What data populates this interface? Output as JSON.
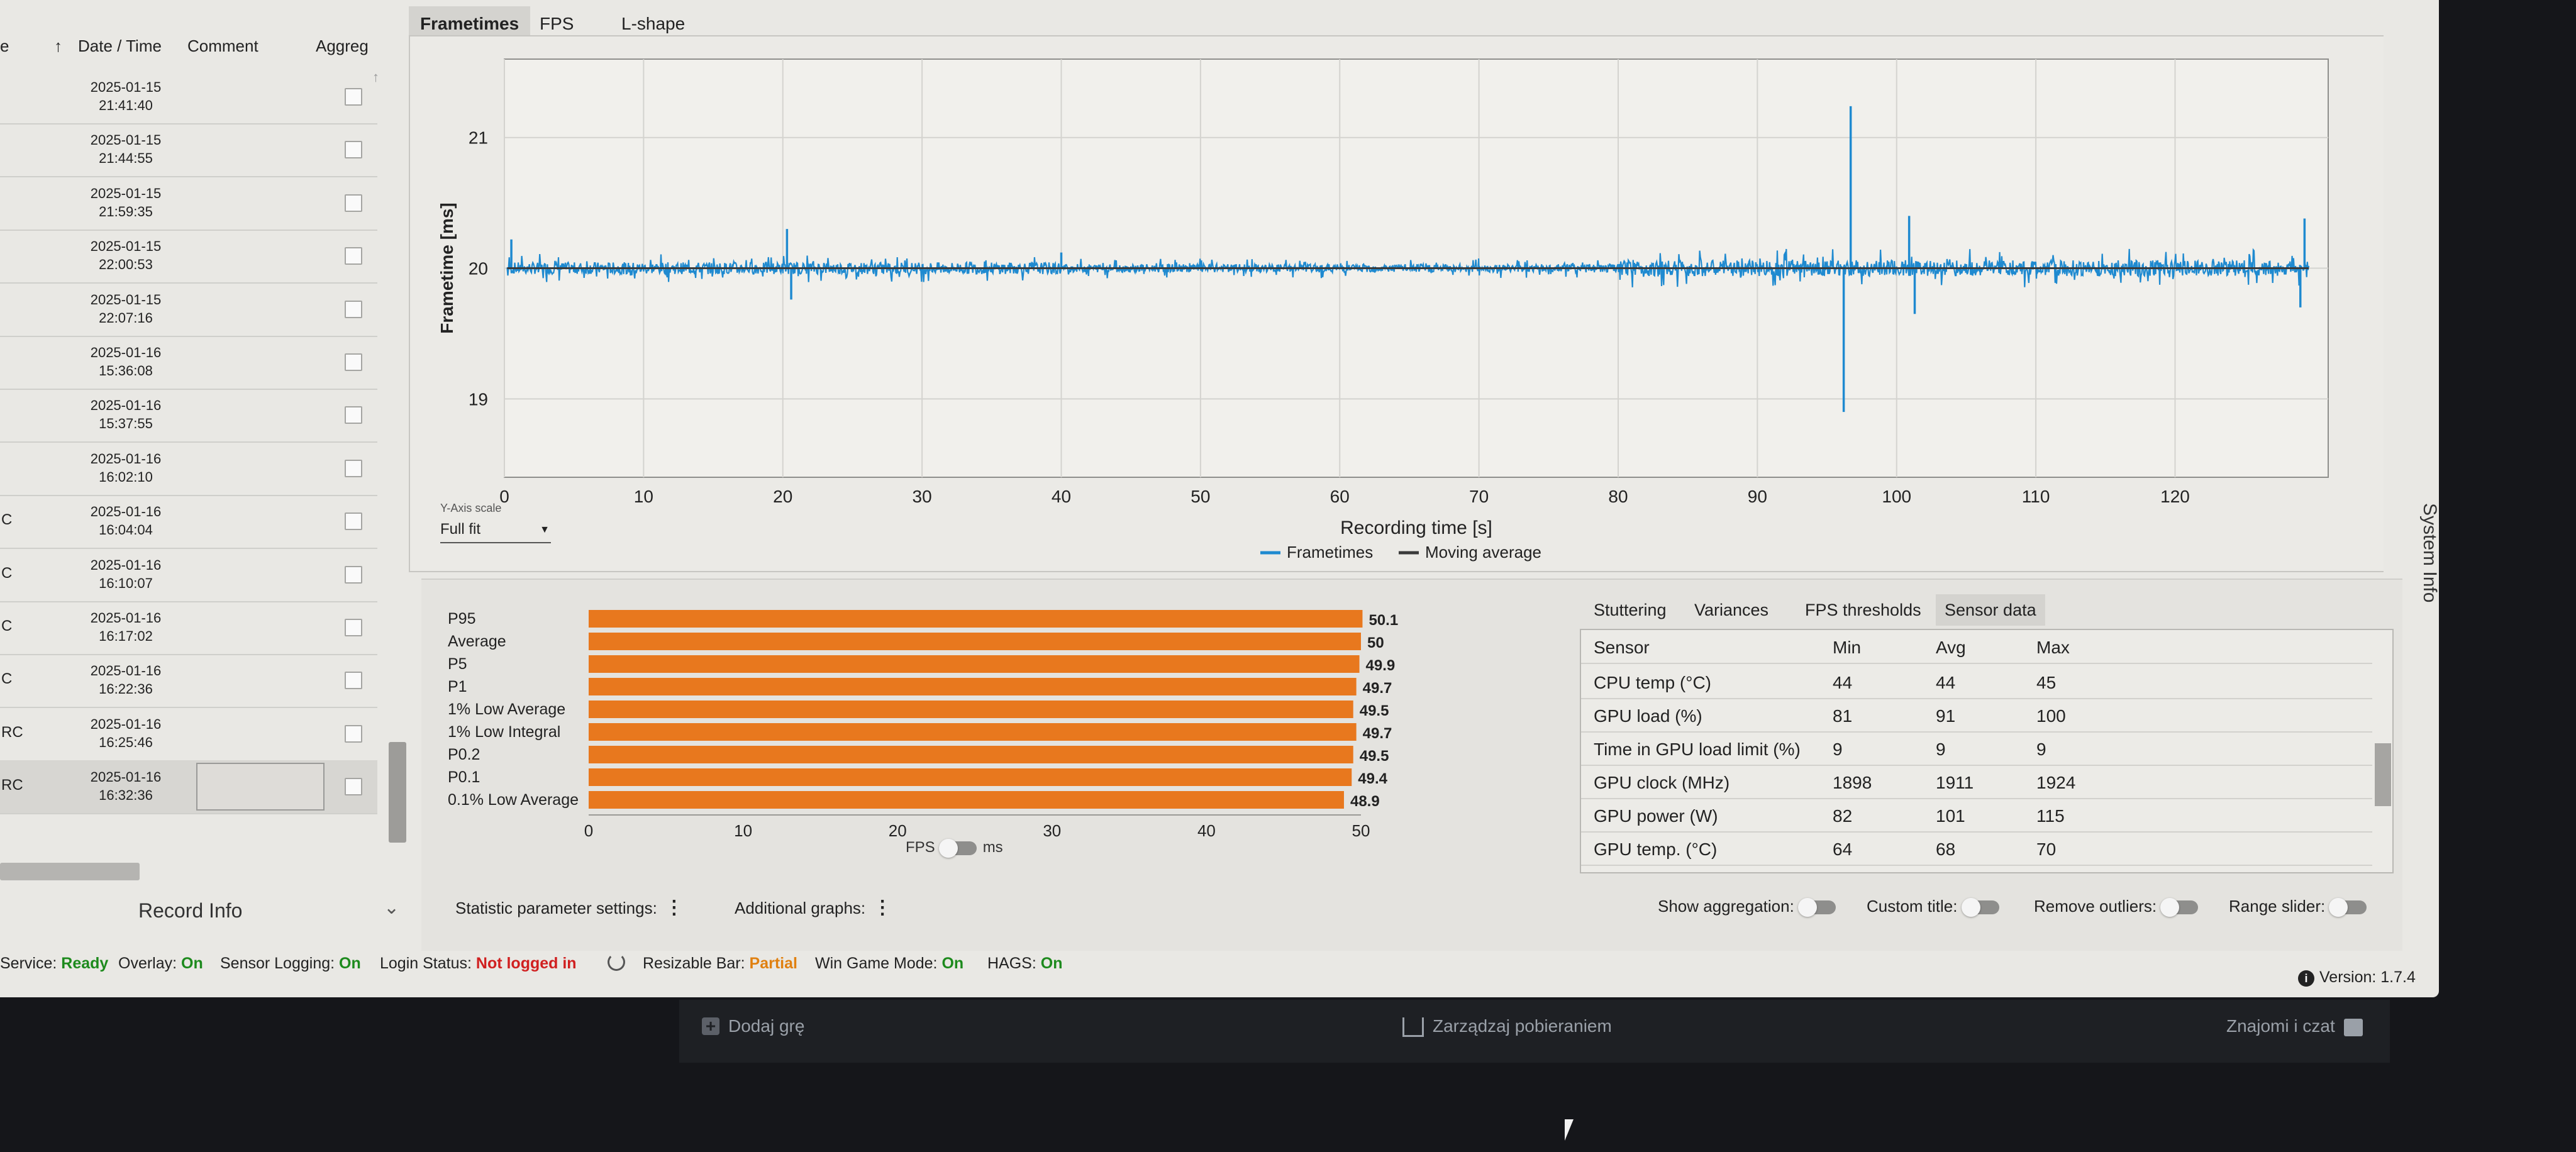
{
  "runs": {
    "headers": {
      "col_e": "e",
      "date_time": "Date / Time",
      "comment": "Comment",
      "aggreg": "Aggreg"
    },
    "rows": [
      {
        "prefix": "",
        "date": "2025-01-15",
        "time": "21:41:40"
      },
      {
        "prefix": "",
        "date": "2025-01-15",
        "time": "21:44:55"
      },
      {
        "prefix": "",
        "date": "2025-01-15",
        "time": "21:59:35"
      },
      {
        "prefix": "",
        "date": "2025-01-15",
        "time": "22:00:53"
      },
      {
        "prefix": "",
        "date": "2025-01-15",
        "time": "22:07:16"
      },
      {
        "prefix": "",
        "date": "2025-01-16",
        "time": "15:36:08"
      },
      {
        "prefix": "",
        "date": "2025-01-16",
        "time": "15:37:55"
      },
      {
        "prefix": "",
        "date": "2025-01-16",
        "time": "16:02:10"
      },
      {
        "prefix": "C",
        "date": "2025-01-16",
        "time": "16:04:04"
      },
      {
        "prefix": "C",
        "date": "2025-01-16",
        "time": "16:10:07"
      },
      {
        "prefix": "C",
        "date": "2025-01-16",
        "time": "16:17:02"
      },
      {
        "prefix": "C",
        "date": "2025-01-16",
        "time": "16:22:36"
      },
      {
        "prefix": "RC",
        "date": "2025-01-16",
        "time": "16:25:46"
      },
      {
        "prefix": "RC",
        "date": "2025-01-16",
        "time": "16:32:36"
      }
    ],
    "record_info": "Record Info"
  },
  "chart_tabs": [
    "Frametimes",
    "FPS",
    "L-shape"
  ],
  "y_axis_scale": {
    "label": "Y-Axis scale",
    "value": "Full fit"
  },
  "system_info": "System Info",
  "chart_data": [
    {
      "type": "line",
      "xlabel": "Recording time [s]",
      "ylabel": "Frametime [ms]",
      "xlim": [
        0,
        131
      ],
      "ylim": [
        18.4,
        21.6
      ],
      "x_ticks": [
        0,
        10,
        20,
        30,
        40,
        50,
        60,
        70,
        80,
        90,
        100,
        110,
        120
      ],
      "y_ticks": [
        19,
        20,
        21
      ],
      "grid": true,
      "legend": "bottom-center",
      "series": [
        {
          "name": "Frametimes",
          "color": "#1f8ad0",
          "baseline": 20.0,
          "spikes": [
            {
              "x": 0.5,
              "y": 20.22
            },
            {
              "x": 20.3,
              "y": 20.3
            },
            {
              "x": 20.6,
              "y": 19.76
            },
            {
              "x": 40.0,
              "y": 20.12
            },
            {
              "x": 96.7,
              "y": 21.24
            },
            {
              "x": 96.2,
              "y": 18.9
            },
            {
              "x": 100.9,
              "y": 20.4
            },
            {
              "x": 101.3,
              "y": 19.65
            },
            {
              "x": 129.3,
              "y": 20.38
            },
            {
              "x": 129.0,
              "y": 19.7
            }
          ]
        },
        {
          "name": "Moving average",
          "color": "#3a3a3a",
          "values": [
            20.0,
            20.0
          ]
        }
      ]
    },
    {
      "type": "bar",
      "orientation": "horizontal",
      "categories": [
        "P95",
        "Average",
        "P5",
        "P1",
        "1% Low Average",
        "1% Low Integral",
        "P0.2",
        "P0.1",
        "0.1% Low Average"
      ],
      "values": [
        50.1,
        50,
        49.9,
        49.7,
        49.5,
        49.7,
        49.5,
        49.4,
        48.9
      ],
      "xlim": [
        0,
        50
      ],
      "x_ticks": [
        0,
        10,
        20,
        30,
        40,
        50
      ],
      "color": "#e8781e"
    }
  ],
  "unit_toggle": {
    "left": "FPS",
    "right": "ms"
  },
  "sensor_tabs": [
    "Stuttering",
    "Variances",
    "FPS thresholds",
    "Sensor data"
  ],
  "sensor_table": {
    "headers": [
      "Sensor",
      "Min",
      "Avg",
      "Max"
    ],
    "rows": [
      [
        "CPU temp (°C)",
        "44",
        "44",
        "45"
      ],
      [
        "GPU load (%)",
        "81",
        "91",
        "100"
      ],
      [
        "Time in GPU load limit (%)",
        "9",
        "9",
        "9"
      ],
      [
        "GPU clock (MHz)",
        "1898",
        "1911",
        "1924"
      ],
      [
        "GPU power (W)",
        "82",
        "101",
        "115"
      ],
      [
        "GPU temp. (°C)",
        "64",
        "68",
        "70"
      ]
    ]
  },
  "options": {
    "statistic_settings": "Statistic parameter settings:",
    "additional_graphs": "Additional graphs:",
    "show_aggregation": "Show aggregation:",
    "custom_title": "Custom title:",
    "remove_outliers": "Remove outliers:",
    "range_slider": "Range slider:"
  },
  "status": {
    "service_label": "Service:",
    "service_value": "Ready",
    "overlay_label": "Overlay:",
    "overlay_value": "On",
    "sensor_label": "Sensor Logging:",
    "sensor_value": "On",
    "login_label": "Login Status:",
    "login_value": "Not logged in",
    "rebar_label": "Resizable Bar:",
    "rebar_value": "Partial",
    "wgm_label": "Win Game Mode:",
    "wgm_value": "On",
    "hags_label": "HAGS:",
    "hags_value": "On",
    "version": "Version: 1.7.4"
  },
  "steam": {
    "add_game": "Dodaj grę",
    "manage_downloads": "Zarządzaj pobieraniem",
    "friends_chat": "Znajomi i czat"
  },
  "colors": {
    "accent_bar": "#e8781e",
    "frametimes": "#1f8ad0",
    "status_on": "#1d8a1d",
    "status_bad": "#d02020",
    "status_partial": "#e08010"
  }
}
